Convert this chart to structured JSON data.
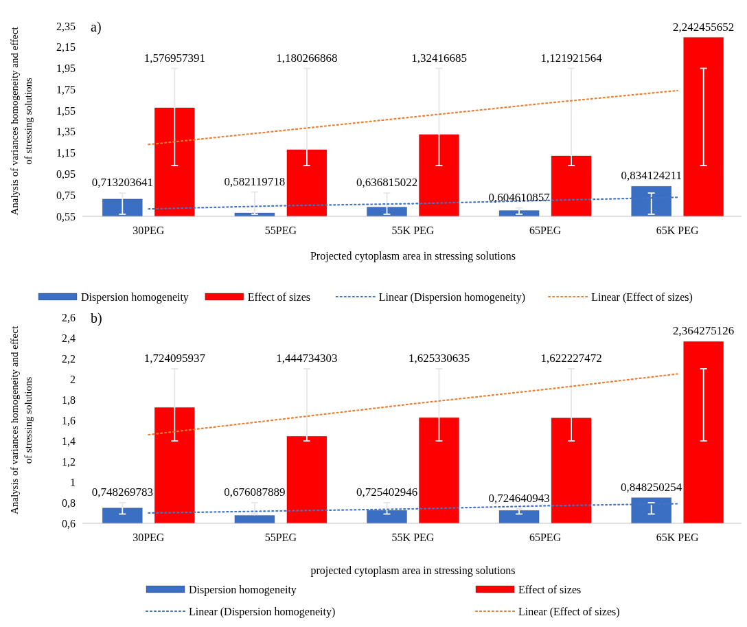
{
  "chart_data": [
    {
      "type": "bar",
      "title": "a)",
      "xlabel": "Projected cytoplasm area in stressing solutions",
      "ylabel": "Analysis of variances homogeneity and effect of stressing solutions",
      "categories": [
        "30PEG",
        "55PEG",
        "55K PEG",
        "65PEG",
        "65K PEG"
      ],
      "series": [
        {
          "name": "Dispersion homogeneity",
          "color": "#3a6fc4",
          "values": [
            0.713203641,
            0.582119718,
            0.636815022,
            0.604610857,
            0.834124211
          ],
          "value_labels": [
            "0,713203641",
            "0,582119718",
            "0,636815022",
            "0,604610857",
            "0,834124211"
          ],
          "errors": [
            [
              0.57,
              0.77
            ],
            [
              0.57,
              0.78
            ],
            [
              0.57,
              0.77
            ],
            [
              0.57,
              0.63
            ],
            [
              0.57,
              0.77
            ]
          ]
        },
        {
          "name": "Effect of sizes",
          "color": "#ff0000",
          "values": [
            1.576957391,
            1.180266868,
            1.32416685,
            1.121921564,
            2.242455652
          ],
          "value_labels": [
            "1,576957391",
            "1,180266868",
            "1,32416685",
            "1,121921564",
            "2,242455652"
          ],
          "errors": [
            [
              1.03,
              1.95
            ],
            [
              1.03,
              1.95
            ],
            [
              1.03,
              1.95
            ],
            [
              1.03,
              1.95
            ],
            [
              1.03,
              1.95
            ]
          ]
        },
        {
          "name": "Linear (Dispersion homogeneity)",
          "type": "line",
          "color": "#4472c4",
          "line_style": "dotted",
          "marker": "none",
          "values": [
            0.62,
            0.65,
            0.67,
            0.7,
            0.73
          ]
        },
        {
          "name": "Linear (Effect of sizes)",
          "type": "line",
          "color": "#ed7d31",
          "line_style": "dotted",
          "marker": "none",
          "values": [
            1.23,
            1.36,
            1.49,
            1.62,
            1.74
          ]
        }
      ],
      "ylim": [
        0.55,
        2.35
      ],
      "yticks": [
        {
          "value": 0.55,
          "label": "0,55"
        },
        {
          "value": 0.75,
          "label": "0,75"
        },
        {
          "value": 0.95,
          "label": "0,95"
        },
        {
          "value": 1.15,
          "label": "1,15"
        },
        {
          "value": 1.35,
          "label": "1,35"
        },
        {
          "value": 1.55,
          "label": "1,55"
        },
        {
          "value": 1.75,
          "label": "1,75"
        },
        {
          "value": 1.95,
          "label": "1,95"
        },
        {
          "value": 2.15,
          "label": "2,15"
        },
        {
          "value": 2.35,
          "label": "2,35"
        }
      ],
      "legend": "bottom",
      "grid": false
    },
    {
      "type": "bar",
      "title": "b)",
      "xlabel": "projected cytoplasm area in stressing solutions",
      "ylabel": "Analysis of variances homogeneity and effect of stressing solutions",
      "categories": [
        "30PEG",
        "55PEG",
        "55K PEG",
        "65PEG",
        "65K PEG"
      ],
      "series": [
        {
          "name": "Dispersion homogeneity",
          "color": "#3a6fc4",
          "values": [
            0.748269783,
            0.676087889,
            0.725402946,
            0.724640943,
            0.848250254
          ],
          "value_labels": [
            "0,748269783",
            "0,676087889",
            "0,725402946",
            "0,724640943",
            "0,848250254"
          ],
          "errors": [
            [
              0.69,
              0.8
            ],
            [
              0.69,
              0.8
            ],
            [
              0.69,
              0.8
            ],
            [
              0.69,
              0.74
            ],
            [
              0.69,
              0.8
            ]
          ]
        },
        {
          "name": "Effect of sizes",
          "color": "#ff0000",
          "values": [
            1.724095937,
            1.444734303,
            1.625330635,
            1.622227472,
            2.364275126
          ],
          "value_labels": [
            "1,724095937",
            "1,444734303",
            "1,625330635",
            "1,622227472",
            "2,364275126"
          ],
          "errors": [
            [
              1.4,
              2.1
            ],
            [
              1.4,
              2.1
            ],
            [
              1.4,
              2.1
            ],
            [
              1.4,
              2.1
            ],
            [
              1.4,
              2.1
            ]
          ]
        },
        {
          "name": "Linear (Dispersion homogeneity)",
          "type": "line",
          "color": "#4472c4",
          "line_style": "dotted",
          "marker": "none",
          "values": [
            0.7,
            0.72,
            0.74,
            0.77,
            0.79
          ]
        },
        {
          "name": "Linear (Effect of sizes)",
          "type": "line",
          "color": "#ed7d31",
          "line_style": "dotted",
          "marker": "none",
          "values": [
            1.46,
            1.61,
            1.76,
            1.9,
            2.05
          ]
        }
      ],
      "ylim": [
        0.6,
        2.6
      ],
      "yticks": [
        {
          "value": 0.6,
          "label": "0,6"
        },
        {
          "value": 0.8,
          "label": "0,8"
        },
        1,
        {
          "value": 1.2,
          "label": "1,2"
        },
        {
          "value": 1.4,
          "label": "1,4"
        },
        {
          "value": 1.6,
          "label": "1,6"
        },
        {
          "value": 1.8,
          "label": "1,8"
        },
        2,
        {
          "value": 2.2,
          "label": "2,2"
        },
        {
          "value": 2.4,
          "label": "2,4"
        },
        {
          "value": 2.6,
          "label": "2,6"
        }
      ],
      "legend": "bottom",
      "grid": false
    }
  ]
}
